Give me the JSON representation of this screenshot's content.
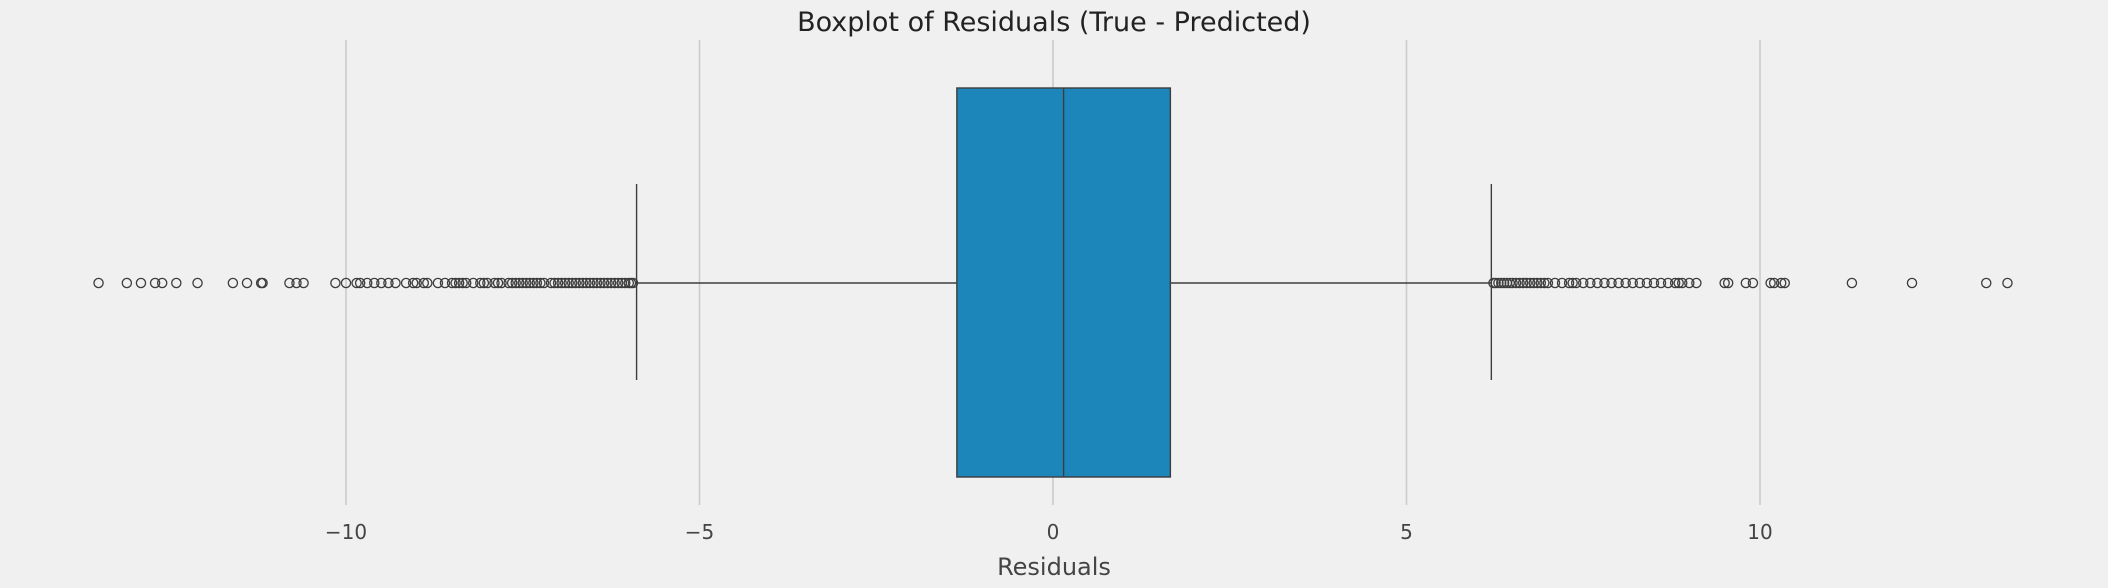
{
  "chart_data": {
    "type": "boxplot",
    "title": "Boxplot of Residuals (True - Predicted)",
    "xlabel": "Residuals",
    "ylabel": "",
    "xlim": [
      -14.4,
      14.4
    ],
    "x_ticks": [
      -10,
      -5,
      0,
      5,
      10
    ],
    "x_tick_labels": [
      "−10",
      "−5",
      "0",
      "5",
      "10"
    ],
    "grid": true,
    "orientation": "horizontal",
    "box": {
      "q1": -1.36,
      "median": 0.15,
      "q3": 1.66,
      "whisker_low": -5.89,
      "whisker_high": 6.2
    },
    "outliers": [
      -13.5,
      -13.1,
      -12.9,
      -12.7,
      -12.6,
      -12.4,
      -12.1,
      -11.6,
      -11.4,
      -11.2,
      -11.18,
      -10.8,
      -10.7,
      -10.6,
      -10.15,
      -10.0,
      -9.85,
      -9.8,
      -9.7,
      -9.6,
      -9.5,
      -9.4,
      -9.3,
      -9.15,
      -9.05,
      -9.0,
      -8.9,
      -8.85,
      -8.7,
      -8.6,
      -8.5,
      -8.45,
      -8.4,
      -8.35,
      -8.3,
      -8.2,
      -8.1,
      -8.05,
      -8.0,
      -7.9,
      -7.85,
      -7.8,
      -7.7,
      -7.65,
      -7.6,
      -7.55,
      -7.5,
      -7.45,
      -7.4,
      -7.35,
      -7.3,
      -7.25,
      -7.2,
      -7.1,
      -7.05,
      -7.0,
      -6.95,
      -6.9,
      -6.85,
      -6.8,
      -6.75,
      -6.7,
      -6.65,
      -6.6,
      -6.55,
      -6.5,
      -6.45,
      -6.4,
      -6.35,
      -6.3,
      -6.25,
      -6.2,
      -6.15,
      -6.1,
      -6.05,
      -6.0,
      -5.97,
      -5.94,
      6.23,
      6.26,
      6.3,
      6.34,
      6.38,
      6.42,
      6.46,
      6.5,
      6.55,
      6.6,
      6.65,
      6.7,
      6.75,
      6.8,
      6.85,
      6.9,
      6.95,
      7.0,
      7.1,
      7.2,
      7.3,
      7.35,
      7.4,
      7.5,
      7.6,
      7.7,
      7.8,
      7.9,
      8.0,
      8.1,
      8.2,
      8.3,
      8.4,
      8.5,
      8.6,
      8.7,
      8.8,
      8.85,
      8.9,
      9.0,
      9.1,
      9.5,
      9.55,
      9.8,
      9.9,
      10.15,
      10.2,
      10.3,
      10.35,
      11.3,
      12.15,
      13.2,
      13.5
    ],
    "colors": {
      "background": "#f0f0f0",
      "box_fill": "#1c86bb",
      "box_edge": "#3d3d3d",
      "grid": "#cbcbcb",
      "text": "#444444",
      "title": "#222222",
      "outlier_edge": "#3d3d3d"
    }
  }
}
